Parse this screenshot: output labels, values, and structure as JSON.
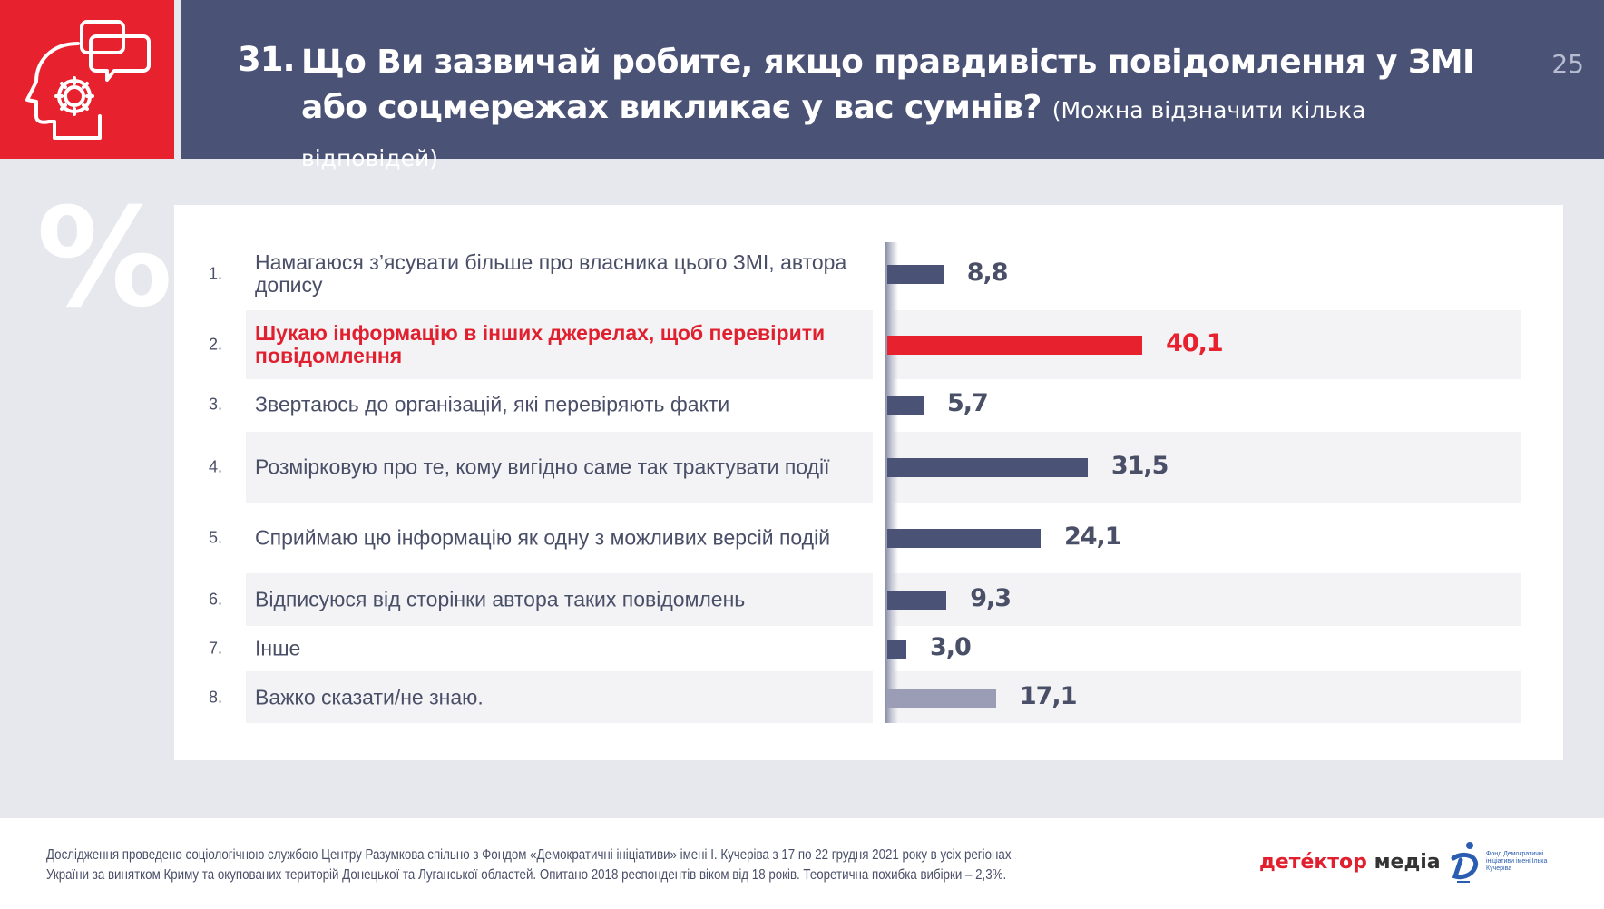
{
  "header": {
    "question_number": "31.",
    "title": "Що Ви зазвичай робите, якщо правдивість повідомлення у ЗМІ або соцмережах викликає у вас сумнів?",
    "note": "(Можна відзначити кілька відповідей)",
    "page_number": "25",
    "icon": "head-gear-speech-icon",
    "colors": {
      "red": "#e8212e",
      "navy": "#4a5275"
    }
  },
  "decor": {
    "percent_symbol": "%"
  },
  "chart_data": {
    "type": "bar",
    "orientation": "horizontal",
    "title": "Що Ви зазвичай робите, якщо правдивість повідомлення у ЗМІ або соцмережах викликає у вас сумнів?",
    "xlabel": "",
    "ylabel": "",
    "unit": "%",
    "xlim": [
      0,
      45
    ],
    "grid": false,
    "legend": "none",
    "highlight_index": 1,
    "categories": [
      {
        "idx": "1.",
        "label": "Намагаюся з’ясувати більше про власника цього ЗМІ, автора допису"
      },
      {
        "idx": "2.",
        "label": "Шукаю інформацію в інших джерелах, щоб перевірити повідомлення"
      },
      {
        "idx": "3.",
        "label": "Звертаюсь до організацій, які перевіряють факти"
      },
      {
        "idx": "4.",
        "label": "Розмірковую про те, кому вигідно саме так трактувати події"
      },
      {
        "idx": "5.",
        "label": "Сприймаю цю інформацію як одну з можливих версій подій"
      },
      {
        "idx": "6.",
        "label": "Відписуюся від сторінки автора таких повідомлень"
      },
      {
        "idx": "7.",
        "label": "Інше"
      },
      {
        "idx": "8.",
        "label": "Важко сказати/не знаю."
      }
    ],
    "values": [
      8.8,
      40.1,
      5.7,
      31.5,
      24.1,
      9.3,
      3.0,
      17.1
    ],
    "value_labels": [
      "8,8",
      "40,1",
      "5,7",
      "31,5",
      "24,1",
      "9,3",
      "3,0",
      "17,1"
    ],
    "bar_colors": [
      "#4a5275",
      "#e8212e",
      "#4a5275",
      "#4a5275",
      "#4a5275",
      "#4a5275",
      "#4a5275",
      "#9a9db5"
    ],
    "label_colors": [
      "#4a4f68",
      "#e0202e",
      "#4a4f68",
      "#4a4f68",
      "#4a4f68",
      "#4a4f68",
      "#4a4f68",
      "#4a4f68"
    ]
  },
  "footer": {
    "note": "Дослідження проведено соціологічною службою Центру Разумкова спільно з Фондом «Демократичні ініціативи» імені І. Кучеріва  з 17 по 22 грудня 2021 року в усіх регіонах України за винятком Криму та окупованих територій Донецької та Луганської областей. Опитано 2018 респондентів віком від 18 років. Теоретична похибка вибірки – 2,3%.",
    "logo_detector_a": "детéктор",
    "logo_detector_b": " медіа",
    "logo_fund_text": "Фонд Демократичні ініціативи імені Ілька Кучеріва"
  }
}
